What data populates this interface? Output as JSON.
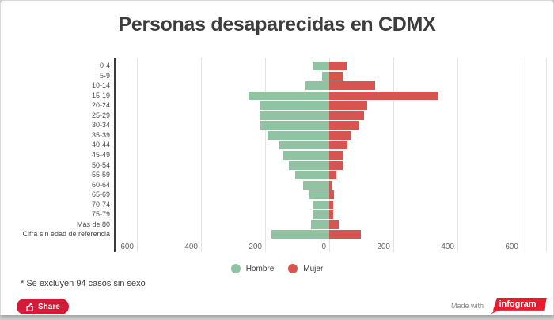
{
  "title": "Personas desaparecidas en CDMX",
  "chart_data": {
    "type": "bar",
    "subtype": "population_pyramid",
    "title": "Personas desaparecidas en CDMX",
    "categories": [
      "0-4",
      "5-9",
      "10-14",
      "15-19",
      "20-24",
      "25-29",
      "30-34",
      "35-39",
      "40-44",
      "45-49",
      "50-54",
      "55-59",
      "60-64",
      "65-69",
      "70-74",
      "75-79",
      "Más de 80",
      "Cifra sin edad de referencia"
    ],
    "series": [
      {
        "name": "Hombre",
        "direction": "left",
        "color": "#8FC3A2",
        "values": [
          50,
          22,
          75,
          253,
          215,
          218,
          214,
          193,
          155,
          142,
          127,
          105,
          81,
          65,
          52,
          51,
          58,
          180
        ]
      },
      {
        "name": "Mujer",
        "direction": "right",
        "color": "#D75450",
        "values": [
          54,
          45,
          142,
          341,
          118,
          109,
          91,
          70,
          58,
          43,
          41,
          23,
          10,
          15,
          12,
          12,
          30,
          99
        ]
      }
    ],
    "x_axis": {
      "tick_values": [
        600,
        400,
        200,
        0,
        200,
        400,
        600
      ],
      "max_each_side": 600,
      "grid": true
    },
    "legend": {
      "position": "bottom",
      "items": [
        "Hombre",
        "Mujer"
      ]
    }
  },
  "footnote": "* Se excluyen 94 casos sin sexo",
  "share": {
    "label": "Share"
  },
  "credit": {
    "prefix": "Made with",
    "brand": "infogram"
  },
  "colors": {
    "hombre": "#8FC3A2",
    "mujer": "#D75450",
    "title_text": "#3d3d3d",
    "share_button": "#D31A38",
    "infogram_red": "#E81C2E",
    "grid": "#e4e4e4",
    "axis": "#3a3a3a"
  }
}
